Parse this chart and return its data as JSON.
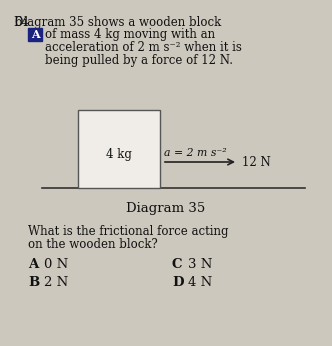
{
  "bg_color": "#cdc8be",
  "question_number": "64",
  "label_A_box_color": "#1a237e",
  "label_A_text": "A",
  "line1": "Diagram 35 shows a wooden block",
  "line2": "of mass 4 kg moving with an",
  "line3": "acceleration of 2 m s⁻² when it is",
  "line4": "being pulled by a force of 12 N.",
  "block_label": "4 kg",
  "floor_color": "#333333",
  "arrow_color": "#222222",
  "accel_label": "a = 2 m s⁻²",
  "force_label": "12 N",
  "diagram_caption": "Diagram 35",
  "question_text_line1": "What is the frictional force acting",
  "question_text_line2": "on the wooden block?",
  "ans_A_letter": "A",
  "ans_A_val": "0 N",
  "ans_B_letter": "B",
  "ans_B_val": "2 N",
  "ans_C_letter": "C",
  "ans_C_val": "3 N",
  "ans_D_letter": "D",
  "ans_D_val": "4 N",
  "font_color": "#111111",
  "text_fontsize": 8.5,
  "small_fontsize": 7.8,
  "answer_fontsize": 9.5
}
